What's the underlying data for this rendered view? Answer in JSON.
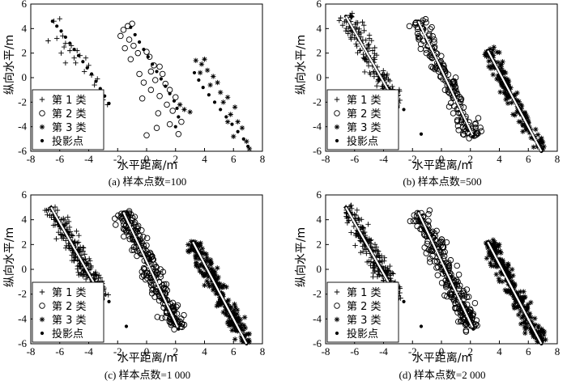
{
  "shared": {
    "xlabel": "水平距离/m",
    "ylabel": "纵向水平/m",
    "xlim": [
      -8,
      8
    ],
    "ylim": [
      -6,
      6
    ],
    "xticks": [
      -8,
      -6,
      -4,
      -2,
      0,
      2,
      4,
      6,
      8
    ],
    "yticks": [
      -6,
      -4,
      -2,
      0,
      2,
      4,
      6
    ],
    "legend": [
      "第 1 类",
      "第 2 类",
      "第 3 类",
      "投影点"
    ],
    "legend_position": "bottom-left",
    "colors": {
      "ink": "#000000",
      "background": "#ffffff"
    }
  },
  "chart_data": [
    {
      "type": "scatter",
      "caption": "(a) 样本点数=100",
      "n_samples": 100,
      "xlabel": "水平距离/m",
      "ylabel": "纵向水平/m",
      "xlim": [
        -8,
        8
      ],
      "ylim": [
        -6,
        6
      ],
      "series": [
        {
          "name": "第 1 类",
          "marker": "plus",
          "points": [
            [
              -6.4,
              4.6
            ],
            [
              -6.0,
              4.8
            ],
            [
              -6.2,
              3.2
            ],
            [
              -5.8,
              3.4
            ],
            [
              -6.8,
              3.0
            ],
            [
              -5.6,
              2.8
            ],
            [
              -5.7,
              2.5
            ],
            [
              -5.2,
              2.6
            ],
            [
              -5.3,
              2.2
            ],
            [
              -5.9,
              2.0
            ],
            [
              -4.8,
              2.2
            ],
            [
              -4.6,
              1.8
            ],
            [
              -5.0,
              1.6
            ],
            [
              -4.9,
              1.2
            ],
            [
              -5.6,
              1.2
            ],
            [
              -4.2,
              1.6
            ],
            [
              -4.0,
              1.0
            ],
            [
              -4.3,
              0.5
            ],
            [
              -3.8,
              0.2
            ],
            [
              -3.4,
              -0.1
            ],
            [
              -3.6,
              -0.6
            ],
            [
              -3.2,
              -1.2
            ],
            [
              -3.0,
              -1.8
            ],
            [
              -2.7,
              -2.2
            ],
            [
              -3.4,
              -2.8
            ]
          ]
        },
        {
          "name": "第 2 类",
          "marker": "circle",
          "points": [
            [
              -1.6,
              3.9
            ],
            [
              -1.3,
              4.2
            ],
            [
              -1.0,
              4.4
            ],
            [
              -1.8,
              3.4
            ],
            [
              -1.2,
              3.1
            ],
            [
              -1.5,
              2.4
            ],
            [
              -0.9,
              2.6
            ],
            [
              -0.6,
              2.0
            ],
            [
              -1.1,
              1.5
            ],
            [
              0.0,
              2.1
            ],
            [
              0.2,
              1.7
            ],
            [
              0.5,
              1.0
            ],
            [
              0.3,
              0.5
            ],
            [
              0.9,
              0.9
            ],
            [
              -0.5,
              0.3
            ],
            [
              -0.2,
              -0.4
            ],
            [
              0.6,
              -0.2
            ],
            [
              1.1,
              0.3
            ],
            [
              1.3,
              -0.5
            ],
            [
              0.3,
              -1.0
            ],
            [
              0.9,
              -1.5
            ],
            [
              1.6,
              -1.0
            ],
            [
              -0.3,
              -1.7
            ],
            [
              1.4,
              -2.2
            ],
            [
              2.0,
              -1.6
            ],
            [
              1.8,
              -2.7
            ],
            [
              0.8,
              -2.9
            ],
            [
              2.4,
              -3.6
            ],
            [
              1.6,
              -3.8
            ],
            [
              0.7,
              -4.1
            ],
            [
              2.2,
              -4.6
            ],
            [
              0.0,
              -4.7
            ]
          ]
        },
        {
          "name": "第 3 类",
          "marker": "star",
          "points": [
            [
              3.4,
              1.4
            ],
            [
              3.8,
              1.1
            ],
            [
              4.0,
              1.5
            ],
            [
              3.7,
              0.4
            ],
            [
              4.2,
              0.6
            ],
            [
              4.6,
              0.1
            ],
            [
              4.4,
              -0.6
            ],
            [
              4.9,
              -0.4
            ],
            [
              5.1,
              -1.2
            ],
            [
              5.6,
              -1.6
            ],
            [
              5.3,
              -2.0
            ],
            [
              6.1,
              -2.4
            ],
            [
              5.8,
              -3.0
            ],
            [
              6.3,
              -3.6
            ],
            [
              5.6,
              -3.6
            ],
            [
              6.6,
              -4.1
            ],
            [
              6.0,
              -4.8
            ],
            [
              6.9,
              -5.2
            ],
            [
              7.1,
              -5.8
            ],
            [
              2.3,
              -2.2
            ],
            [
              2.6,
              -2.6
            ],
            [
              3.0,
              -2.8
            ]
          ]
        },
        {
          "name": "投影点",
          "marker": "dot",
          "points": [
            [
              -6.5,
              4.6
            ],
            [
              -6.2,
              4.2
            ],
            [
              -5.9,
              3.8
            ],
            [
              -5.6,
              3.3
            ],
            [
              -5.3,
              2.8
            ],
            [
              -5.0,
              2.3
            ],
            [
              -4.7,
              1.8
            ],
            [
              -4.4,
              1.3
            ],
            [
              -4.1,
              0.8
            ],
            [
              -3.8,
              0.3
            ],
            [
              -3.5,
              -0.3
            ],
            [
              -3.2,
              -0.9
            ],
            [
              -2.9,
              -1.5
            ],
            [
              -2.6,
              -2.1
            ],
            [
              -1.1,
              4.1
            ],
            [
              -0.8,
              3.5
            ],
            [
              -0.5,
              2.9
            ],
            [
              -0.2,
              2.3
            ],
            [
              0.1,
              1.7
            ],
            [
              0.4,
              1.1
            ],
            [
              0.7,
              0.5
            ],
            [
              1.0,
              -0.1
            ],
            [
              1.3,
              -0.7
            ],
            [
              1.6,
              -1.3
            ],
            [
              1.9,
              -1.9
            ],
            [
              2.1,
              -2.5
            ],
            [
              2.2,
              -3.2
            ],
            [
              2.0,
              -4.0
            ],
            [
              3.3,
              0.4
            ],
            [
              3.6,
              -0.2
            ],
            [
              3.9,
              -0.8
            ],
            [
              4.3,
              -1.4
            ],
            [
              4.7,
              -2.0
            ],
            [
              5.1,
              -2.6
            ],
            [
              5.5,
              -3.2
            ],
            [
              5.9,
              -3.8
            ],
            [
              6.3,
              -4.4
            ],
            [
              6.7,
              -5.0
            ],
            [
              7.0,
              -5.6
            ]
          ]
        }
      ]
    },
    {
      "type": "scatter",
      "caption": "(b) 样本点数=500",
      "n_samples": 500,
      "xlabel": "水平距离/m",
      "ylabel": "纵向水平/m",
      "xlim": [
        -8,
        8
      ],
      "ylim": [
        -6,
        6
      ],
      "series": [
        {
          "name": "第 1 类",
          "marker": "plus",
          "points": []
        },
        {
          "name": "第 2 类",
          "marker": "circle",
          "points": []
        },
        {
          "name": "第 3 类",
          "marker": "star",
          "points": []
        },
        {
          "name": "投影点",
          "marker": "dot",
          "points": []
        }
      ]
    },
    {
      "type": "scatter",
      "caption": "(c) 样本点数=1 000",
      "n_samples": 1000,
      "xlabel": "水平距离/m",
      "ylabel": "纵向水平/m",
      "xlim": [
        -8,
        8
      ],
      "ylim": [
        -6,
        6
      ],
      "series": [
        {
          "name": "第 1 类",
          "marker": "plus",
          "points": []
        },
        {
          "name": "第 2 类",
          "marker": "circle",
          "points": []
        },
        {
          "name": "第 3 类",
          "marker": "star",
          "points": []
        },
        {
          "name": "投影点",
          "marker": "dot",
          "points": []
        }
      ]
    },
    {
      "type": "scatter",
      "caption": "(d) 样本点数=2 000",
      "n_samples": 2000,
      "xlabel": "水平距离/m",
      "ylabel": "纵向水平/m",
      "xlim": [
        -8,
        8
      ],
      "ylim": [
        -6,
        6
      ],
      "series": [
        {
          "name": "第 1 类",
          "marker": "plus",
          "points": []
        },
        {
          "name": "第 2 类",
          "marker": "circle",
          "points": []
        },
        {
          "name": "第 3 类",
          "marker": "star",
          "points": []
        },
        {
          "name": "投影点",
          "marker": "dot",
          "points": []
        }
      ]
    }
  ]
}
